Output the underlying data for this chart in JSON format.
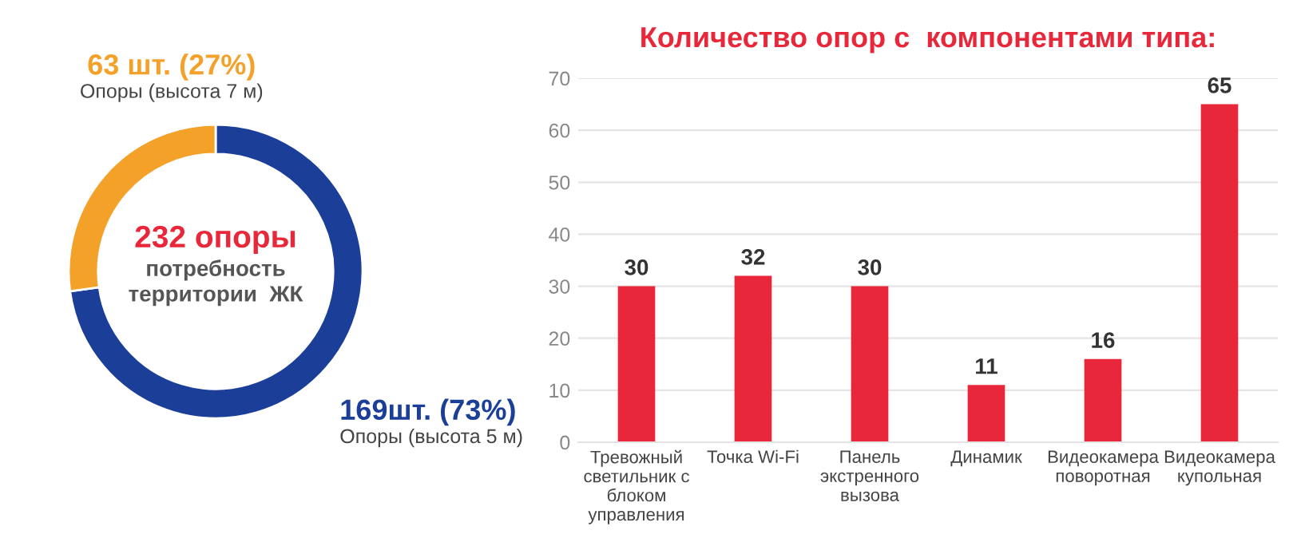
{
  "chart_data": [
    {
      "type": "donut",
      "categories": [
        "Опоры (высота 5 м)",
        "Опоры (высота 7 м)"
      ],
      "values": [
        169,
        63
      ],
      "colors": [
        "#1b3f99",
        "#f4a12a"
      ],
      "value_labels": [
        "169шт. (73%)",
        "63 шт. (27%)"
      ],
      "annotations": [
        "232 опоры",
        "потребность\nтерритории  ЖК"
      ]
    },
    {
      "type": "bar",
      "title": "Количество опор с  компонентами типа:",
      "categories": [
        "Тревожный\nсветильник с\nблоком\nуправления",
        "Точка Wi-Fi",
        "Панель\nэкстренного\nвызова",
        "Динамик",
        "Видеокамера\nповоротная",
        "Видеокамера\nкупольная"
      ],
      "values": [
        30,
        32,
        30,
        11,
        16,
        65
      ],
      "color": "#e8283a",
      "ylim": [
        0,
        70
      ],
      "yticks": [
        0,
        10,
        20,
        30,
        40,
        50,
        60,
        70
      ],
      "grid": "y",
      "data_labels": true
    }
  ]
}
